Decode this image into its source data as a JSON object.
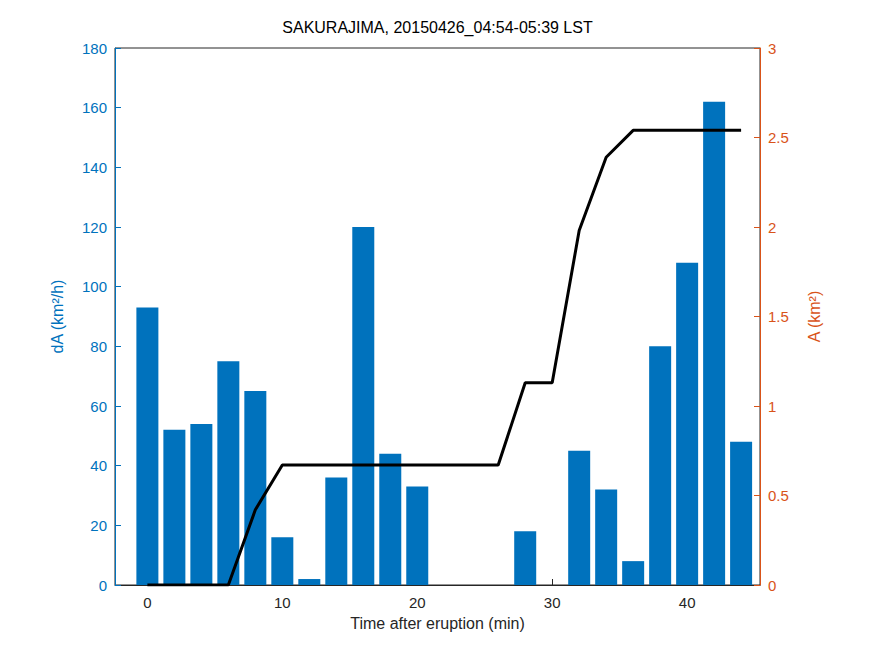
{
  "chart_data": {
    "type": "bar",
    "title": "SAKURAJIMA, 20150426_04:54-05:39 LST",
    "x_label": "Time after eruption (min)",
    "y_label": "dA (km²/h)",
    "y2_label": "A (km²)",
    "x": [
      0,
      2,
      4,
      6,
      8,
      10,
      12,
      14,
      16,
      18,
      20,
      22,
      24,
      26,
      28,
      30,
      32,
      34,
      36,
      38,
      40,
      42,
      44
    ],
    "series": [
      {
        "type": "bar",
        "color": "#0072bd",
        "values": [
          93,
          52,
          54,
          75,
          65,
          16,
          2,
          36,
          120,
          44,
          33,
          0,
          0,
          0,
          18,
          0,
          45,
          32,
          8,
          80,
          108,
          162,
          48
        ]
      },
      {
        "type": "line",
        "axis": "y2",
        "color": "#000000",
        "values": [
          0,
          0,
          0,
          0,
          0.42,
          0.67,
          0.67,
          0.67,
          0.67,
          0.67,
          0.67,
          0.67,
          0.67,
          0.67,
          1.13,
          1.13,
          1.98,
          2.39,
          2.54,
          2.54,
          2.54,
          2.54,
          2.54
        ]
      }
    ],
    "xlim": [
      -2.4,
      45.4
    ],
    "xticks": [
      0,
      10,
      20,
      30,
      40
    ],
    "ylim": [
      0,
      180
    ],
    "yticks": [
      0,
      20,
      40,
      60,
      80,
      100,
      120,
      140,
      160,
      180
    ],
    "y2lim": [
      0,
      3
    ],
    "y2ticks": [
      0,
      0.5,
      1,
      1.5,
      2,
      2.5,
      3
    ],
    "y_color": "#0072bd",
    "y2_color": "#d95319",
    "grid": false
  }
}
